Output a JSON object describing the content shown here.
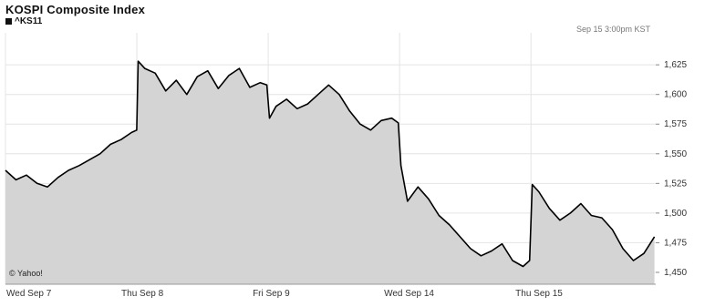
{
  "chart_data": {
    "type": "area",
    "title": "KOSPI Composite Index",
    "series_label": "^KS11",
    "timestamp": "Sep 15 3:00pm KST",
    "source": "© Yahoo!",
    "colors": {
      "fill": "#d4d4d4",
      "line": "#000000",
      "grid": "#e4e4e4"
    },
    "ylim": [
      1440,
      1652
    ],
    "y_ticks": [
      {
        "value": 1450,
        "label": "1,450"
      },
      {
        "value": 1475,
        "label": "1,475"
      },
      {
        "value": 1500,
        "label": "1,500"
      },
      {
        "value": 1525,
        "label": "1,525"
      },
      {
        "value": 1550,
        "label": "1,550"
      },
      {
        "value": 1575,
        "label": "1,575"
      },
      {
        "value": 1600,
        "label": "1,600"
      },
      {
        "value": 1625,
        "label": "1,625"
      }
    ],
    "x_ticks": [
      "Wed Sep 7",
      "Thu Sep 8",
      "Fri Sep 9",
      "Wed Sep 14",
      "Thu Sep 15"
    ],
    "x_tick_positions": [
      0,
      1,
      2,
      3,
      4
    ],
    "xlim": [
      0,
      4.95
    ],
    "grid": true,
    "x": [
      0,
      0.08,
      0.16,
      0.24,
      0.32,
      0.4,
      0.48,
      0.56,
      0.64,
      0.72,
      0.8,
      0.88,
      0.96,
      0.999,
      1.01,
      1.06,
      1.14,
      1.22,
      1.3,
      1.38,
      1.46,
      1.54,
      1.62,
      1.7,
      1.78,
      1.86,
      1.94,
      1.99,
      2.01,
      2.06,
      2.14,
      2.22,
      2.3,
      2.38,
      2.46,
      2.54,
      2.62,
      2.7,
      2.78,
      2.86,
      2.94,
      2.99,
      3.01,
      3.06,
      3.14,
      3.22,
      3.3,
      3.38,
      3.46,
      3.54,
      3.62,
      3.7,
      3.78,
      3.86,
      3.94,
      3.99,
      4.01,
      4.06,
      4.14,
      4.22,
      4.3,
      4.38,
      4.46,
      4.54,
      4.62,
      4.7,
      4.78,
      4.86,
      4.94
    ],
    "y": [
      1536,
      1528,
      1532,
      1525,
      1522,
      1530,
      1536,
      1540,
      1545,
      1550,
      1558,
      1562,
      1568,
      1570,
      1628,
      1622,
      1618,
      1603,
      1612,
      1600,
      1615,
      1620,
      1605,
      1616,
      1622,
      1606,
      1610,
      1608,
      1580,
      1590,
      1596,
      1588,
      1592,
      1600,
      1608,
      1600,
      1586,
      1575,
      1570,
      1578,
      1580,
      1576,
      1540,
      1510,
      1522,
      1512,
      1498,
      1490,
      1480,
      1470,
      1464,
      1468,
      1474,
      1460,
      1455,
      1460,
      1524,
      1518,
      1504,
      1494,
      1500,
      1508,
      1498,
      1496,
      1486,
      1470,
      1460,
      1466,
      1480
    ]
  }
}
